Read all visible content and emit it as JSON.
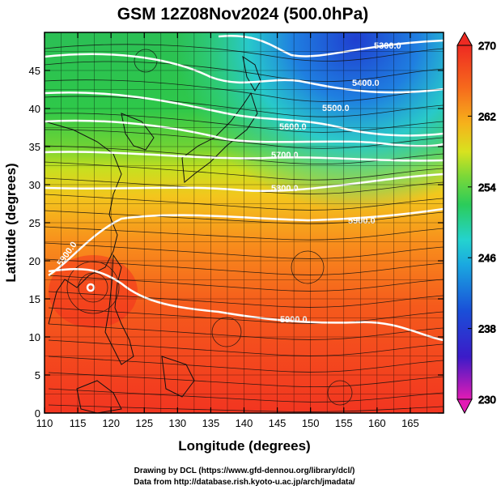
{
  "header": {
    "title": "GSM 12Z08Nov2024 (500.0hPa)"
  },
  "axes": {
    "x_title": "Longitude (degrees)",
    "y_title": "Latitude  (degrees)",
    "x_ticks": [
      "110",
      "115",
      "120",
      "125",
      "130",
      "135",
      "140",
      "145",
      "150",
      "155",
      "160",
      "165"
    ],
    "y_ticks": [
      "0",
      "5",
      "10",
      "15",
      "20",
      "25",
      "30",
      "35",
      "40",
      "45"
    ],
    "x_range": [
      110,
      170
    ],
    "y_range": [
      0,
      50
    ]
  },
  "colorbar": {
    "labels": [
      "270",
      "262",
      "254",
      "246",
      "238",
      "230"
    ],
    "range": [
      230,
      270
    ]
  },
  "contours": {
    "labels": [
      "5300.0",
      "5400.0",
      "5500.0",
      "5600.0",
      "5700.0",
      "5800.0",
      "5900.0",
      "5900.0",
      "5900.0"
    ]
  },
  "credits": {
    "line1": "Drawing by DCL (https://www.gfd-dennou.org/library/dcl/)",
    "line2": "Data from http://database.rish.kyoto-u.ac.jp/arch/jmadata/"
  },
  "colors": {
    "warm": "#f03a1e",
    "orange": "#f7a21b",
    "yellow": "#e7e51e",
    "green": "#3dc843",
    "cyan": "#25d6d2",
    "blue": "#1857d8",
    "magenta": "#e020b8"
  }
}
